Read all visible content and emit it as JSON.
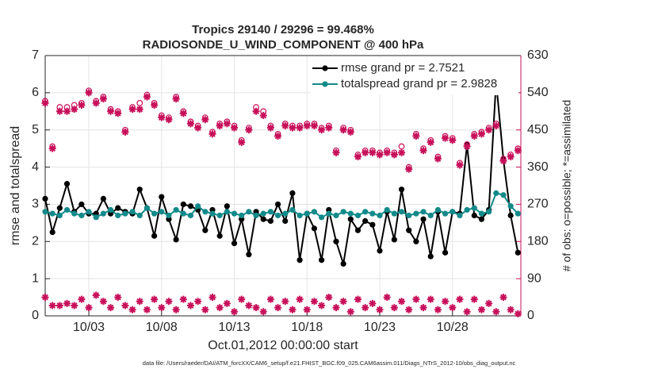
{
  "chart_data": {
    "type": "line",
    "title": [
      "Tropics 29140 / 29296 = 99.468%",
      "RADIOSONDE_U_WIND_COMPONENT @ 400 hPa"
    ],
    "xlabel": "Oct.01,2012 00:00:00 start",
    "ylabel": "rmse and totalspread",
    "y2label": "# of obs: o=possible; *=assimilated",
    "footnote": "data file: /Users/raeder/DAI/ATM_forcXX/CAM6_setup/f.e21.FHIST_BGC.f09_025.CAM6assim.011/Diags_NTrS_2012-10/obs_diag_output.nc",
    "x": [
      0,
      0.5,
      1,
      1.5,
      2,
      2.5,
      3,
      3.5,
      4,
      4.5,
      5,
      5.5,
      6,
      6.5,
      7,
      7.5,
      8,
      8.5,
      9,
      9.5,
      10,
      10.5,
      11,
      11.5,
      12,
      12.5,
      13,
      13.5,
      14,
      14.5,
      15,
      15.5,
      16,
      16.5,
      17,
      17.5,
      18,
      18.5,
      19,
      19.5,
      20,
      20.5,
      21,
      21.5,
      22,
      22.5,
      23,
      23.5,
      24,
      24.5,
      25,
      25.5,
      26,
      26.5,
      27,
      27.5,
      28,
      28.5,
      29,
      29.5,
      30,
      30.5,
      31,
      31.5,
      32,
      32.5
    ],
    "xlim": [
      0,
      32.7
    ],
    "xticks": [
      {
        "value": 3,
        "label": "10/03"
      },
      {
        "value": 8,
        "label": "10/08"
      },
      {
        "value": 13,
        "label": "10/13"
      },
      {
        "value": 18,
        "label": "10/18"
      },
      {
        "value": 23,
        "label": "10/23"
      },
      {
        "value": 28,
        "label": "10/28"
      }
    ],
    "ylim": [
      0,
      7
    ],
    "yticks": [
      0,
      1,
      2,
      3,
      4,
      5,
      6,
      7
    ],
    "y2lim": [
      0,
      630
    ],
    "y2ticks": [
      0,
      90,
      180,
      270,
      360,
      450,
      540,
      630
    ],
    "y2_color": "#c8105a",
    "grid": true,
    "legend": "top-right",
    "legend_text_color": "#1a3ee0",
    "series": [
      {
        "name": "rmse grand pr = 2.7521",
        "color": "#000000",
        "marker": "dot",
        "line": true,
        "values": [
          3.15,
          2.25,
          2.9,
          3.55,
          2.8,
          3.0,
          2.75,
          2.75,
          3.15,
          2.75,
          2.9,
          2.8,
          2.75,
          3.4,
          2.9,
          2.15,
          3.2,
          2.6,
          2.05,
          3.0,
          2.95,
          2.85,
          2.3,
          2.85,
          2.15,
          2.95,
          1.95,
          2.6,
          1.65,
          2.8,
          2.6,
          2.55,
          3.0,
          2.55,
          3.3,
          1.5,
          2.75,
          2.35,
          1.5,
          2.85,
          2.0,
          1.4,
          2.6,
          2.3,
          2.55,
          2.45,
          1.75,
          2.8,
          2.05,
          3.4,
          2.3,
          2.0,
          2.6,
          1.6,
          2.8,
          1.7,
          2.8,
          2.75,
          4.6,
          2.7,
          2.6,
          2.85,
          6.3,
          4.2,
          2.7,
          1.7
        ]
      },
      {
        "name": "totalspread grand pr = 2.9828",
        "color": "#138a8a",
        "marker": "dot",
        "line": true,
        "values": [
          2.8,
          2.75,
          2.7,
          2.85,
          2.75,
          2.7,
          2.8,
          2.65,
          2.75,
          2.85,
          2.7,
          2.75,
          2.8,
          2.7,
          2.9,
          2.75,
          2.8,
          2.7,
          2.85,
          2.75,
          2.7,
          2.95,
          2.8,
          2.75,
          2.7,
          2.8,
          2.75,
          2.7,
          2.8,
          2.7,
          2.75,
          2.8,
          2.7,
          2.75,
          2.85,
          2.7,
          2.75,
          2.8,
          2.65,
          2.75,
          2.7,
          2.8,
          2.75,
          2.7,
          2.8,
          2.75,
          2.7,
          2.85,
          2.75,
          2.8,
          2.7,
          2.75,
          2.8,
          2.7,
          2.85,
          2.75,
          2.8,
          2.7,
          2.85,
          2.9,
          2.75,
          2.8,
          3.3,
          3.25,
          2.95,
          2.75
        ]
      },
      {
        "color": "#c8105a",
        "marker": "circle",
        "axis": "y2",
        "values": [
          520,
          410,
          505,
          505,
          510,
          515,
          545,
          520,
          530,
          500,
          495,
          450,
          505,
          515,
          535,
          515,
          485,
          480,
          530,
          495,
          470,
          460,
          480,
          445,
          465,
          470,
          460,
          425,
          455,
          505,
          495,
          460,
          440,
          465,
          460,
          460,
          465,
          465,
          455,
          460,
          400,
          455,
          450,
          390,
          400,
          400,
          395,
          400,
          395,
          410,
          360,
          440,
          405,
          425,
          385,
          435,
          430,
          370,
          415,
          440,
          445,
          455,
          465,
          380,
          390,
          405
        ]
      },
      {
        "color": "#c8105a",
        "marker": "star",
        "axis": "y2",
        "values": [
          515,
          405,
          495,
          495,
          500,
          510,
          540,
          515,
          525,
          495,
          490,
          445,
          500,
          500,
          530,
          510,
          480,
          475,
          525,
          490,
          465,
          455,
          475,
          440,
          460,
          465,
          455,
          420,
          450,
          495,
          485,
          455,
          435,
          460,
          455,
          455,
          460,
          460,
          450,
          455,
          395,
          450,
          445,
          385,
          395,
          395,
          390,
          395,
          390,
          395,
          355,
          435,
          400,
          420,
          380,
          430,
          425,
          365,
          410,
          435,
          440,
          450,
          460,
          375,
          385,
          400
        ]
      },
      {
        "color": "#c8105a",
        "marker": "star",
        "axis": "y2",
        "values": [
          45,
          25,
          25,
          30,
          25,
          40,
          20,
          50,
          35,
          20,
          45,
          25,
          15,
          35,
          15,
          40,
          20,
          35,
          15,
          40,
          25,
          35,
          15,
          45,
          20,
          30,
          10,
          40,
          25,
          20,
          10,
          40,
          20,
          35,
          15,
          40,
          15,
          35,
          25,
          45,
          20,
          35,
          10,
          40,
          20,
          30,
          15,
          45,
          20,
          35,
          15,
          40,
          20,
          40,
          15,
          35,
          20,
          40,
          10,
          40,
          15,
          30,
          10,
          45,
          15,
          5
        ]
      }
    ]
  }
}
